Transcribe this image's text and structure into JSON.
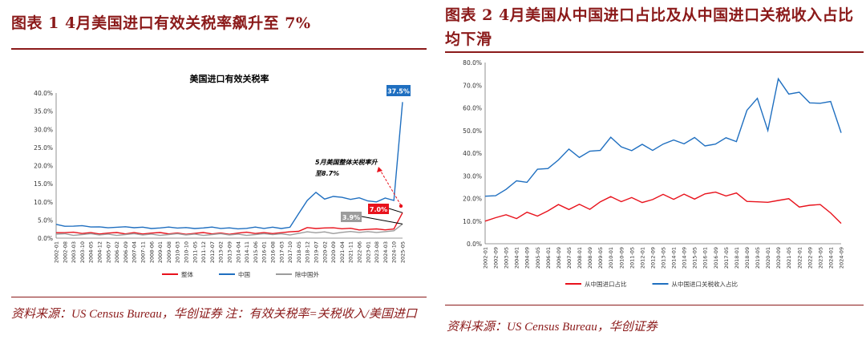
{
  "figures": [
    {
      "title": "图表 1   4月美国进口有效关税率飙升至 7%",
      "source": "资料来源：US Census Bureau，华创证券    注：有效关税率=关税收入/美国进口"
    },
    {
      "title": "图表 2   4月美国从中国进口占比及从中国进口关税收入占比均下滑",
      "source": "资料来源：US Census Bureau，华创证券"
    }
  ],
  "chart_data": [
    {
      "type": "line",
      "title": "美国进口有效关税率",
      "yticks": [
        "0.0%",
        "5.0%",
        "10.0%",
        "15.0%",
        "20.0%",
        "25.0%",
        "30.0%",
        "35.0%",
        "40.0%"
      ],
      "ylim": [
        0,
        40
      ],
      "xticks": [
        "2002-01",
        "2002-08",
        "2003-03",
        "2003-10",
        "2004-05",
        "2004-12",
        "2005-07",
        "2006-02",
        "2006-09",
        "2007-04",
        "2007-11",
        "2008-06",
        "2009-01",
        "2009-08",
        "2010-03",
        "2010-10",
        "2011-05",
        "2011-12",
        "2012-07",
        "2013-02",
        "2013-09",
        "2014-04",
        "2014-11",
        "2015-06",
        "2016-01",
        "2016-08",
        "2017-03",
        "2017-10",
        "2018-05",
        "2018-12",
        "2019-07",
        "2020-02",
        "2020-09",
        "2021-04",
        "2021-11",
        "2022-06",
        "2023-01",
        "2023-08",
        "2024-03",
        "2024-10",
        "2025-05"
      ],
      "series": [
        {
          "name": "整体",
          "color": "#e8121c",
          "values": [
            1.5,
            1.5,
            1.4,
            1.4,
            1.4,
            1.4,
            1.4,
            1.3,
            1.3,
            1.4,
            1.4,
            1.4,
            1.3,
            1.3,
            1.3,
            1.3,
            1.3,
            1.3,
            1.3,
            1.3,
            1.3,
            1.4,
            1.4,
            1.4,
            1.4,
            1.5,
            1.5,
            1.5,
            2.0,
            2.8,
            2.9,
            2.8,
            2.6,
            2.7,
            2.6,
            2.5,
            2.4,
            2.3,
            2.4,
            2.4,
            7.0
          ]
        },
        {
          "name": "中国",
          "color": "#1f6fc0",
          "values": [
            3.8,
            3.5,
            3.3,
            3.2,
            3.2,
            3.0,
            3.1,
            3.0,
            2.9,
            3.0,
            2.9,
            2.9,
            2.8,
            2.8,
            2.9,
            2.8,
            2.9,
            2.8,
            2.8,
            2.8,
            2.7,
            2.8,
            2.7,
            2.8,
            2.8,
            2.9,
            2.9,
            3.0,
            6.5,
            10.5,
            12.5,
            11.0,
            11.5,
            11.0,
            10.8,
            11.0,
            10.5,
            10.0,
            10.8,
            10.5,
            37.5
          ]
        },
        {
          "name": "除中国外",
          "color": "#9c9c9c",
          "values": [
            1.1,
            1.1,
            1.0,
            1.0,
            1.0,
            1.0,
            1.0,
            1.0,
            1.0,
            1.0,
            1.0,
            1.0,
            1.0,
            1.0,
            1.0,
            1.0,
            1.0,
            1.0,
            1.0,
            1.0,
            1.0,
            1.0,
            1.0,
            1.0,
            1.0,
            1.1,
            1.1,
            1.1,
            1.3,
            1.5,
            1.6,
            1.6,
            1.5,
            1.6,
            1.6,
            1.7,
            1.7,
            1.8,
            1.8,
            1.8,
            3.9
          ]
        }
      ],
      "annotations": {
        "peak_label": "37.5%",
        "overall_label": "7.0%",
        "exchina_label": "3.9%",
        "note_line1": "5月美国整体关税率升",
        "note_line2": "至8.7%"
      }
    },
    {
      "type": "line",
      "title": "",
      "yticks": [
        "0.0%",
        "10.0%",
        "20.0%",
        "30.0%",
        "40.0%",
        "50.0%",
        "60.0%",
        "70.0%",
        "80.0%"
      ],
      "ylim": [
        0,
        80
      ],
      "xticks": [
        "2002-01",
        "2002-09",
        "2003-05",
        "2004-01",
        "2004-09",
        "2005-05",
        "2006-01",
        "2006-09",
        "2007-05",
        "2008-01",
        "2008-09",
        "2009-05",
        "2010-01",
        "2010-09",
        "2011-05",
        "2012-01",
        "2012-09",
        "2013-05",
        "2014-01",
        "2014-09",
        "2015-05",
        "2016-01",
        "2016-09",
        "2017-05",
        "2018-01",
        "2018-09",
        "2019-05",
        "2020-01",
        "2020-09",
        "2021-05",
        "2022-01",
        "2022-09",
        "2023-05",
        "2024-01",
        "2024-09"
      ],
      "series": [
        {
          "name": "从中国进口占比",
          "color": "#e8121c",
          "values": [
            10.0,
            11.5,
            11.0,
            12.0,
            13.0,
            14.0,
            14.5,
            15.5,
            16.0,
            16.5,
            17.0,
            18.5,
            19.0,
            19.5,
            19.5,
            20.0,
            19.5,
            20.0,
            20.5,
            21.0,
            21.5,
            22.0,
            21.0,
            22.0,
            21.5,
            20.5,
            18.5,
            16.5,
            20.0,
            19.0,
            18.0,
            17.0,
            15.5,
            14.5,
            9.0
          ]
        },
        {
          "name": "从中国进口关税收入占比",
          "color": "#1f6fc0",
          "values": [
            21.0,
            23.0,
            24.0,
            26.0,
            28.0,
            32.0,
            35.0,
            37.0,
            40.0,
            39.0,
            40.0,
            43.0,
            47.0,
            41.0,
            42.0,
            43.0,
            43.0,
            44.0,
            44.0,
            45.0,
            46.0,
            45.0,
            44.0,
            45.0,
            46.0,
            58.0,
            66.0,
            50.0,
            71.0,
            67.0,
            66.0,
            64.0,
            62.0,
            61.0,
            49.0
          ]
        }
      ]
    }
  ]
}
